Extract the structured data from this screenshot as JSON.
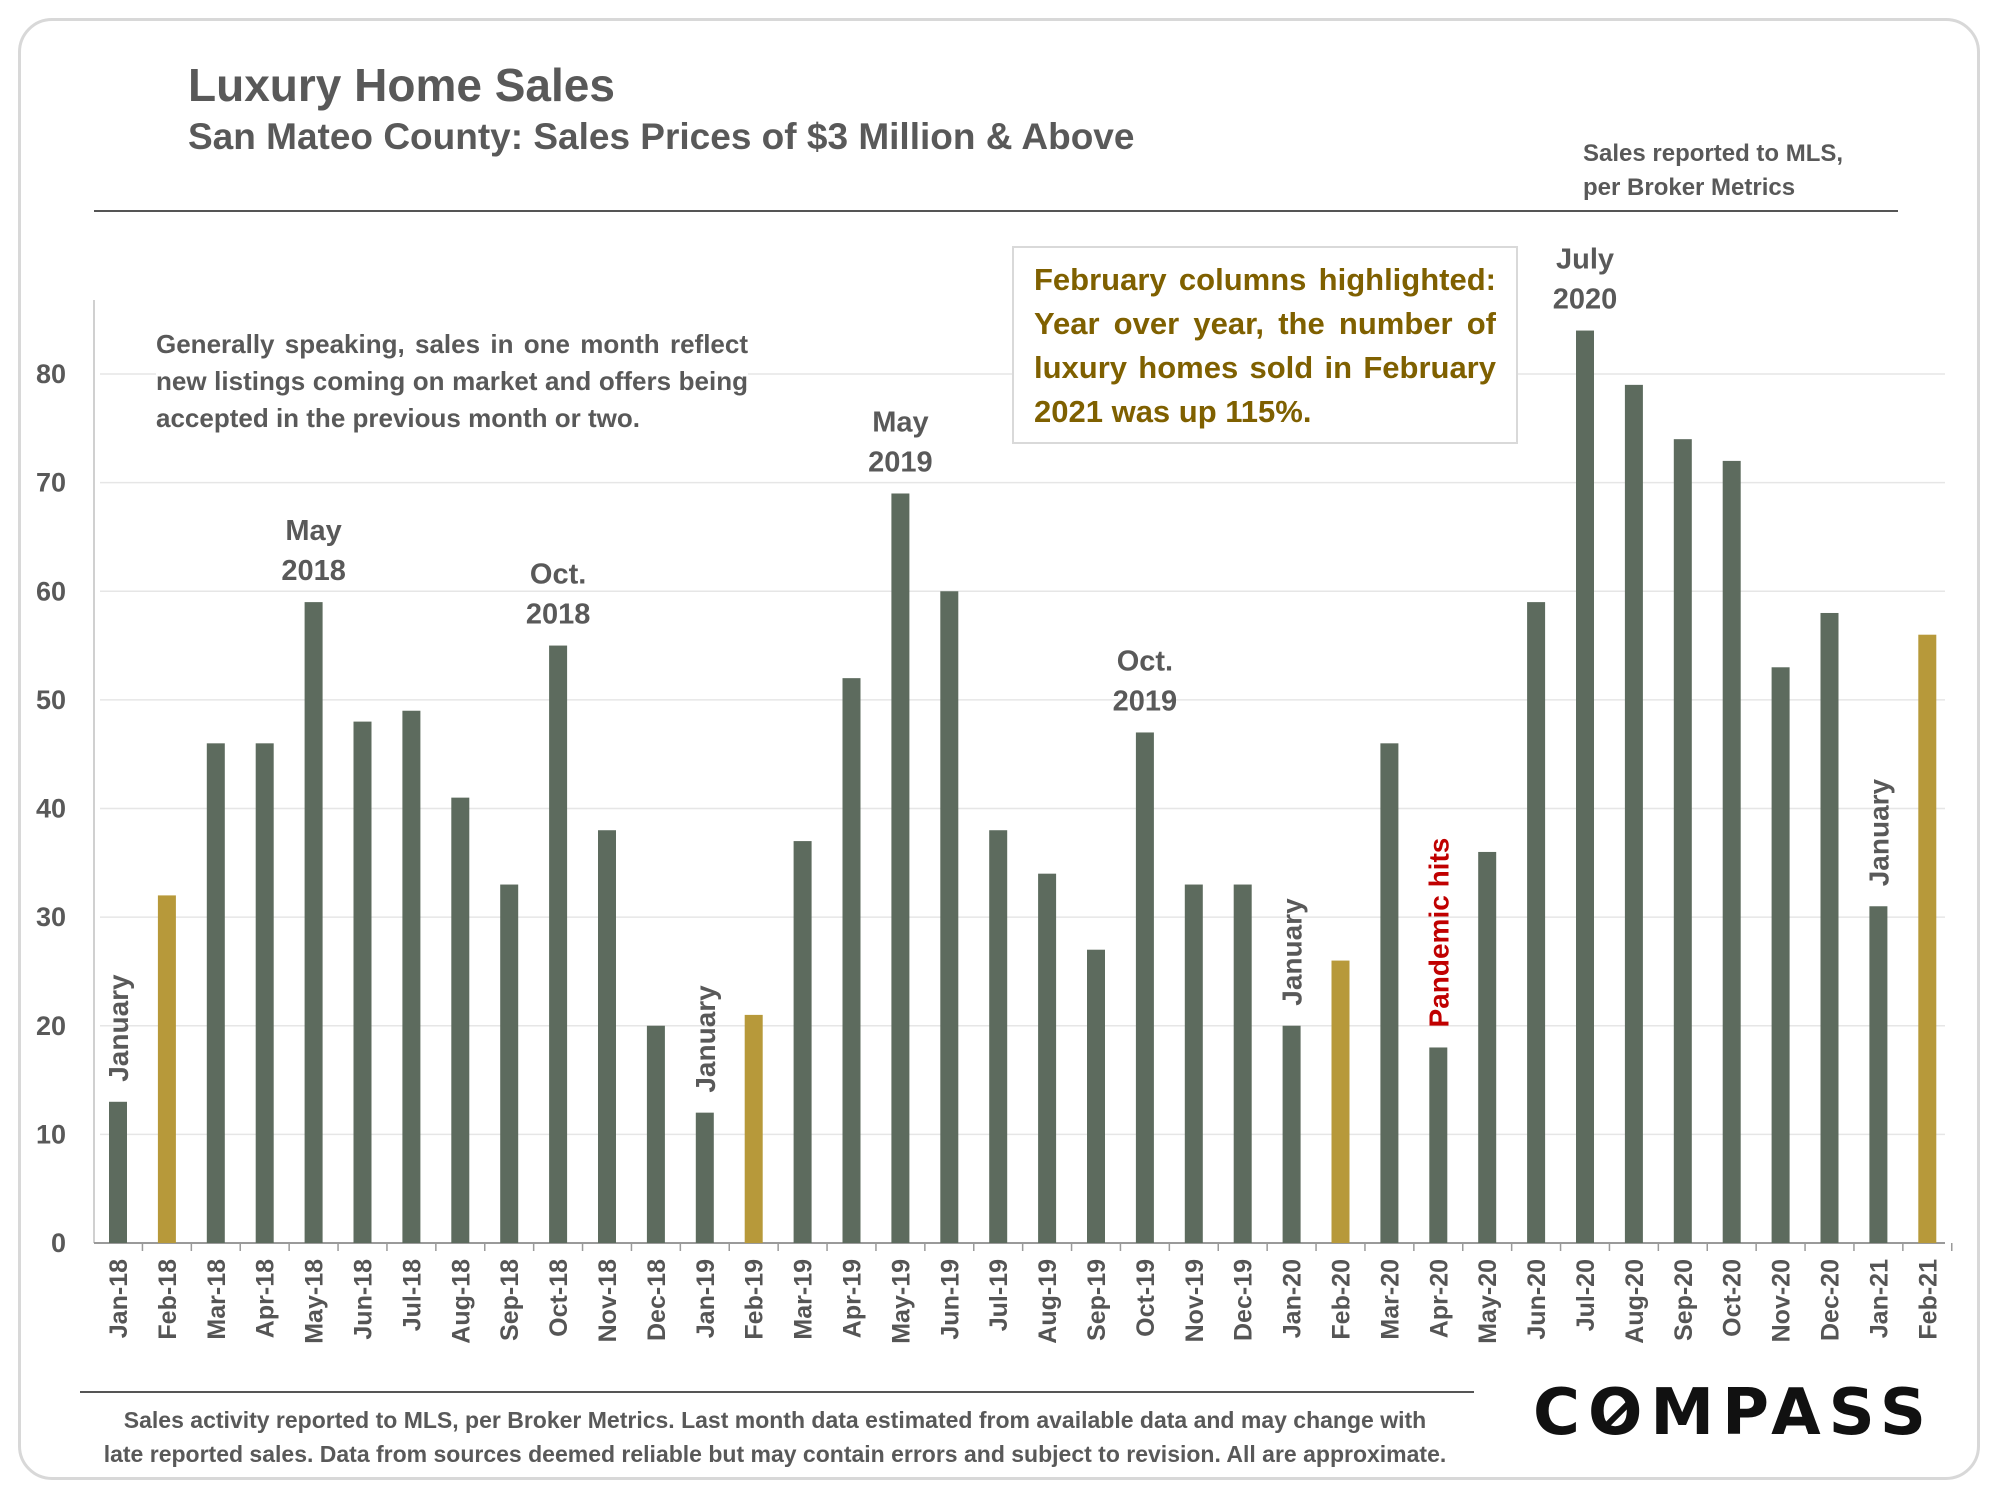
{
  "header": {
    "title": "Luxury Home Sales",
    "subtitle": "San Mateo County: Sales Prices of $3 Million & Above",
    "source_note_line1": "Sales reported to MLS,",
    "source_note_line2": "per Broker Metrics"
  },
  "notes": {
    "left_note": "Generally speaking, sales in one month reflect new listings coming on market and offers being accepted in the previous month or two.",
    "callout": "February columns highlighted: Year over year, the number of luxury homes sold in February 2021 was up 115%."
  },
  "footer": {
    "line1": "Sales activity reported to MLS, per Broker Metrics. Last month data estimated from available data and may change with",
    "line2": "late reported sales. Data from sources deemed reliable but may contain errors and subject to revision. All are approximate.",
    "logo": "COMPASS"
  },
  "colors": {
    "bar": "#5d6b5e",
    "highlight": "#b7993a",
    "callout_text": "#7f6000",
    "pandemic": "#c00000"
  },
  "chart_data": {
    "type": "bar",
    "title": "Luxury Home Sales",
    "ylim": [
      0,
      85
    ],
    "yticks": [
      0,
      10,
      20,
      30,
      40,
      50,
      60,
      70,
      80
    ],
    "grid": true,
    "categories": [
      "Jan-18",
      "Feb-18",
      "Mar-18",
      "Apr-18",
      "May-18",
      "Jun-18",
      "Jul-18",
      "Aug-18",
      "Sep-18",
      "Oct-18",
      "Nov-18",
      "Dec-18",
      "Jan-19",
      "Feb-19",
      "Mar-19",
      "Apr-19",
      "May-19",
      "Jun-19",
      "Jul-19",
      "Aug-19",
      "Sep-19",
      "Oct-19",
      "Nov-19",
      "Dec-19",
      "Jan-20",
      "Feb-20",
      "Mar-20",
      "Apr-20",
      "May-20",
      "Jun-20",
      "Jul-20",
      "Aug-20",
      "Sep-20",
      "Oct-20",
      "Nov-20",
      "Dec-20",
      "Jan-21",
      "Feb-21"
    ],
    "values": [
      13,
      32,
      46,
      46,
      59,
      48,
      49,
      41,
      33,
      55,
      38,
      20,
      12,
      21,
      37,
      52,
      69,
      60,
      38,
      34,
      27,
      47,
      33,
      33,
      20,
      26,
      46,
      18,
      36,
      59,
      84,
      79,
      74,
      72,
      53,
      58,
      31,
      56
    ],
    "highlighted": [
      "Feb-18",
      "Feb-19",
      "Feb-20",
      "Feb-21"
    ],
    "annotations": [
      {
        "category": "Jan-18",
        "text": "January",
        "style": "vertical"
      },
      {
        "category": "Jan-19",
        "text": "January",
        "style": "vertical"
      },
      {
        "category": "Jan-20",
        "text": "January",
        "style": "vertical"
      },
      {
        "category": "Jan-21",
        "text": "January",
        "style": "vertical"
      },
      {
        "category": "Apr-20",
        "text": "Pandemic hits",
        "style": "vertical-red"
      },
      {
        "category": "May-18",
        "text": [
          "May",
          "2018"
        ],
        "style": "above"
      },
      {
        "category": "Oct-18",
        "text": [
          "Oct.",
          "2018"
        ],
        "style": "above"
      },
      {
        "category": "May-19",
        "text": [
          "May",
          "2019"
        ],
        "style": "above"
      },
      {
        "category": "Oct-19",
        "text": [
          "Oct.",
          "2019"
        ],
        "style": "above"
      },
      {
        "category": "Jul-20",
        "text": [
          "July",
          "2020"
        ],
        "style": "above"
      }
    ]
  }
}
